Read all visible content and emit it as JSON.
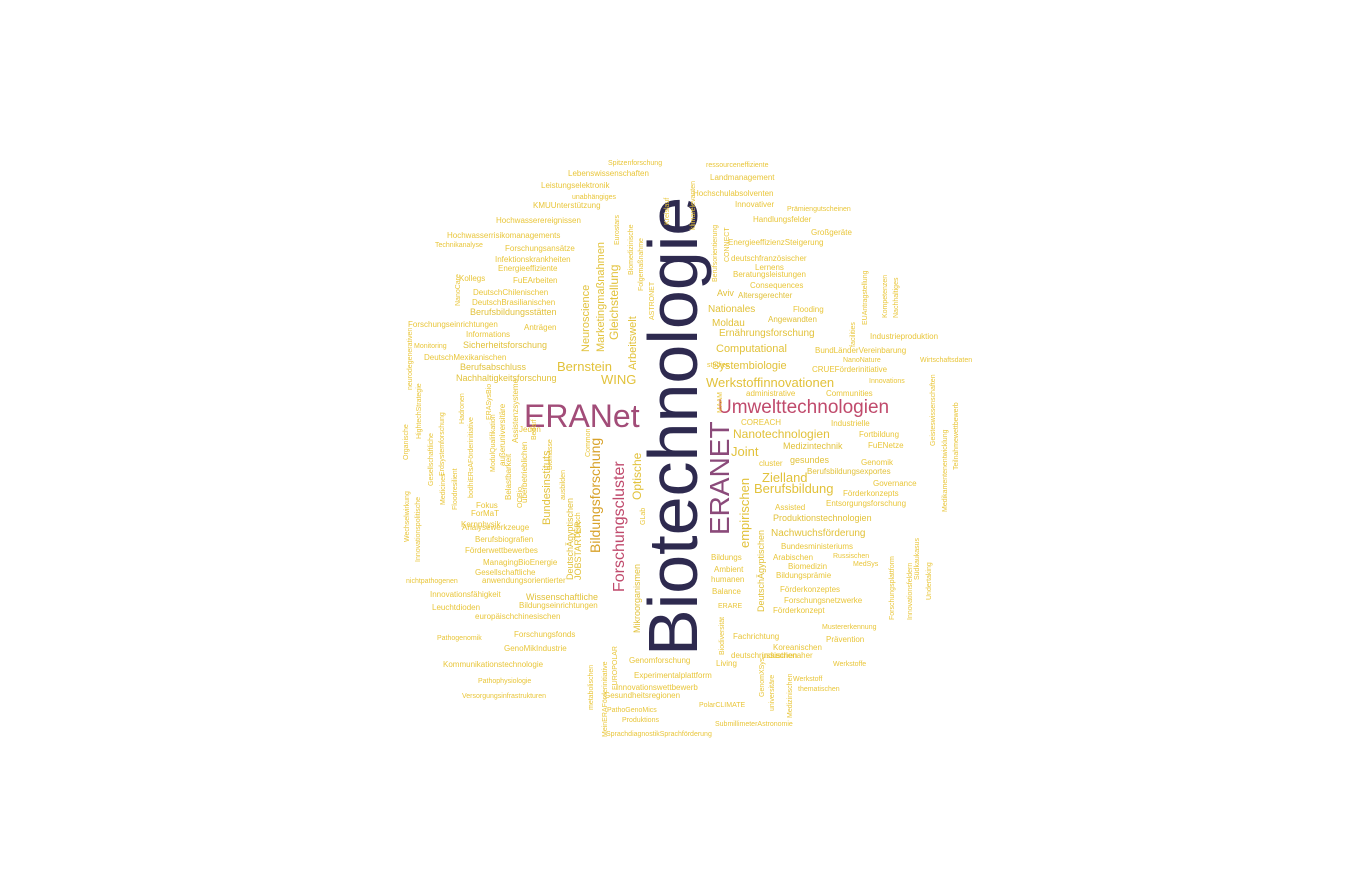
{
  "wordcloud": {
    "palette": {
      "c1": "#2E2A4F",
      "c2": "#8B4A7A",
      "c3": "#A24C78",
      "c4": "#C04A6C",
      "c5": "#D8A22A",
      "c6": "#E2C23B",
      "c7": "#E9C63A"
    },
    "words": [
      {
        "text": "Biotechnologie",
        "weight": 100
      },
      {
        "text": "ERANet",
        "weight": 42
      },
      {
        "text": "ERANET",
        "weight": 40
      },
      {
        "text": "Umwelttechnologien",
        "weight": 30
      },
      {
        "text": "Forschungscluster",
        "weight": 26
      },
      {
        "text": "Bildungsforschung",
        "weight": 24
      },
      {
        "text": "Werkstoffinnovationen",
        "weight": 22
      },
      {
        "text": "Bernstein",
        "weight": 18
      },
      {
        "text": "WING",
        "weight": 18
      },
      {
        "text": "Nanotechnologien",
        "weight": 17
      },
      {
        "text": "Berufsbildung",
        "weight": 17
      },
      {
        "text": "Zielland",
        "weight": 16
      },
      {
        "text": "Joint",
        "weight": 16
      },
      {
        "text": "empirischen",
        "weight": 16
      },
      {
        "text": "Bundesinstituts",
        "weight": 14
      },
      {
        "text": "Optische",
        "weight": 14
      },
      {
        "text": "Neuroscience",
        "weight": 14
      },
      {
        "text": "Gleichstellung",
        "weight": 14
      },
      {
        "text": "Marketingmaßnahmen",
        "weight": 13
      },
      {
        "text": "Arbeitswelt",
        "weight": 13
      },
      {
        "text": "Systembiologie",
        "weight": 13
      },
      {
        "text": "Computational",
        "weight": 12
      },
      {
        "text": "Ernährungsforschung",
        "weight": 12
      },
      {
        "text": "Nationales",
        "weight": 12
      },
      {
        "text": "Moldau",
        "weight": 12
      },
      {
        "text": "Nachwuchsförderung",
        "weight": 12
      },
      {
        "text": "Produktionstechnologien",
        "weight": 11
      },
      {
        "text": "Medizintechnik",
        "weight": 11
      },
      {
        "text": "gesundes",
        "weight": 11
      },
      {
        "text": "Sicherheitsforschung",
        "weight": 11
      },
      {
        "text": "Nachhaltigkeitsforschung",
        "weight": 11
      },
      {
        "text": "Wissenschaftliche",
        "weight": 11
      },
      {
        "text": "DeutschÄgyptischen",
        "weight": 11
      },
      {
        "text": "JOBSTARTER",
        "weight": 10
      },
      {
        "text": "DeutschÄgyptischen",
        "weight": 10
      },
      {
        "text": "Mikroorganismen",
        "weight": 10
      },
      {
        "text": "Berufsabschluss",
        "weight": 10
      },
      {
        "text": "Aviv",
        "weight": 10
      },
      {
        "text": "Berufsbildungsexportes",
        "weight": 9
      },
      {
        "text": "Angewandten",
        "weight": 9
      },
      {
        "text": "Altersgerechter",
        "weight": 9
      },
      {
        "text": "Berufsbildungsstätten",
        "weight": 9
      },
      {
        "text": "Spitzenforschung",
        "weight": 8
      },
      {
        "text": "ressourceneffiziente",
        "weight": 8
      },
      {
        "text": "Lebenswissenschaften",
        "weight": 8
      },
      {
        "text": "Landmanagement",
        "weight": 8
      },
      {
        "text": "Leistungselektronik",
        "weight": 8
      },
      {
        "text": "Hochschulabsolventen",
        "weight": 8
      },
      {
        "text": "unabhängiges",
        "weight": 7
      },
      {
        "text": "KMUUnterstützung",
        "weight": 8
      },
      {
        "text": "Innovativer",
        "weight": 8
      },
      {
        "text": "Prämiengutscheinen",
        "weight": 7
      },
      {
        "text": "Hochwasserereignissen",
        "weight": 8
      },
      {
        "text": "Handlungsfelder",
        "weight": 8
      },
      {
        "text": "Großgeräte",
        "weight": 8
      },
      {
        "text": "Hochwasserrisikomanagements",
        "weight": 8
      },
      {
        "text": "EnergieeffizienzSteigerung",
        "weight": 8
      },
      {
        "text": "Technikanalyse",
        "weight": 7
      },
      {
        "text": "Forschungsansätze",
        "weight": 8
      },
      {
        "text": "Infektionskrankheiten",
        "weight": 8
      },
      {
        "text": "deutschfranzösischer",
        "weight": 8
      },
      {
        "text": "Energieeffiziente",
        "weight": 8
      },
      {
        "text": "Lernens",
        "weight": 8
      },
      {
        "text": "Kollegs",
        "weight": 8
      },
      {
        "text": "FuEArbeiten",
        "weight": 8
      },
      {
        "text": "Beratungsleistungen",
        "weight": 8
      },
      {
        "text": "Consequences",
        "weight": 8
      },
      {
        "text": "DeutschChilenischen",
        "weight": 8
      },
      {
        "text": "DeutschBrasilianischen",
        "weight": 8
      },
      {
        "text": "Flooding",
        "weight": 8
      },
      {
        "text": "Forschungseinrichtungen",
        "weight": 8
      },
      {
        "text": "Anträgen",
        "weight": 8
      },
      {
        "text": "Informations",
        "weight": 8
      },
      {
        "text": "Monitoring",
        "weight": 7
      },
      {
        "text": "Industrieproduktion",
        "weight": 8
      },
      {
        "text": "BundLänderVereinbarung",
        "weight": 8
      },
      {
        "text": "DeutschMexikanischen",
        "weight": 8
      },
      {
        "text": "NanoNature",
        "weight": 7
      },
      {
        "text": "Wirtschaftsdaten",
        "weight": 7
      },
      {
        "text": "studies",
        "weight": 7
      },
      {
        "text": "CRUEFörderinitiative",
        "weight": 8
      },
      {
        "text": "Innovations",
        "weight": 7
      },
      {
        "text": "administrative",
        "weight": 8
      },
      {
        "text": "Communities",
        "weight": 8
      },
      {
        "text": "COREACH",
        "weight": 8
      },
      {
        "text": "Industrielle",
        "weight": 8
      },
      {
        "text": "Fortbildung",
        "weight": 8
      },
      {
        "text": "FuENetze",
        "weight": 8
      },
      {
        "text": "Genomik",
        "weight": 8
      },
      {
        "text": "cluster",
        "weight": 8
      },
      {
        "text": "Governance",
        "weight": 8
      },
      {
        "text": "Förderkonzepts",
        "weight": 8
      },
      {
        "text": "Assisted",
        "weight": 8
      },
      {
        "text": "Entsorgungsforschung",
        "weight": 8
      },
      {
        "text": "Analysewerkzeuge",
        "weight": 8
      },
      {
        "text": "Berufsbiografien",
        "weight": 8
      },
      {
        "text": "Förderwettbewerbes",
        "weight": 8
      },
      {
        "text": "ManagingBioEnergie",
        "weight": 8
      },
      {
        "text": "Gesellschaftliche",
        "weight": 8
      },
      {
        "text": "nichtpathogenen",
        "weight": 7
      },
      {
        "text": "anwendungsorientierter",
        "weight": 8
      },
      {
        "text": "Innovationsfähigkeit",
        "weight": 8
      },
      {
        "text": "Leuchtdioden",
        "weight": 8
      },
      {
        "text": "Bildungseinrichtungen",
        "weight": 8
      },
      {
        "text": "europäischchinesischen",
        "weight": 8
      },
      {
        "text": "Bundesministeriums",
        "weight": 8
      },
      {
        "text": "Arabischen",
        "weight": 8
      },
      {
        "text": "Russischen",
        "weight": 7
      },
      {
        "text": "Biomedizin",
        "weight": 8
      },
      {
        "text": "MedSys",
        "weight": 7
      },
      {
        "text": "Bildungsprämie",
        "weight": 8
      },
      {
        "text": "Förderkonzeptes",
        "weight": 8
      },
      {
        "text": "Forschungsnetzwerke",
        "weight": 8
      },
      {
        "text": "Förderkonzept",
        "weight": 8
      },
      {
        "text": "Mustererkennung",
        "weight": 7
      },
      {
        "text": "Pathogenomik",
        "weight": 7
      },
      {
        "text": "Forschungsfonds",
        "weight": 8
      },
      {
        "text": "Fachrichtung",
        "weight": 8
      },
      {
        "text": "Prävention",
        "weight": 8
      },
      {
        "text": "GenoMikIndustrie",
        "weight": 8
      },
      {
        "text": "deutschrussischen",
        "weight": 8
      },
      {
        "text": "Koreanischen",
        "weight": 8
      },
      {
        "text": "Kommunikationstechnologie",
        "weight": 8
      },
      {
        "text": "Genomforschung",
        "weight": 8
      },
      {
        "text": "Living",
        "weight": 8
      },
      {
        "text": "industrienaher",
        "weight": 8
      },
      {
        "text": "Werkstoffe",
        "weight": 7
      },
      {
        "text": "Experimentalplattform",
        "weight": 8
      },
      {
        "text": "Pathophysiologie",
        "weight": 7
      },
      {
        "text": "Innovationswettbewerb",
        "weight": 8
      },
      {
        "text": "Werkstoff",
        "weight": 7
      },
      {
        "text": "thematischen",
        "weight": 7
      },
      {
        "text": "Gesundheitsregionen",
        "weight": 8
      },
      {
        "text": "Versorgungsinfrastrukturen",
        "weight": 7
      },
      {
        "text": "PathoGenoMics",
        "weight": 7
      },
      {
        "text": "PolarCLIMATE",
        "weight": 7
      },
      {
        "text": "Produktions",
        "weight": 7
      },
      {
        "text": "SubmillimeterAstronomie",
        "weight": 7
      },
      {
        "text": "SprachdiagnostikSprachförderung",
        "weight": 7
      },
      {
        "text": "Bildungs",
        "weight": 8
      },
      {
        "text": "Ambient",
        "weight": 8
      },
      {
        "text": "humanen",
        "weight": 8
      },
      {
        "text": "Balance",
        "weight": 8
      },
      {
        "text": "ERARE",
        "weight": 7
      },
      {
        "text": "Belastbarkeit",
        "weight": 8
      },
      {
        "text": "Fokus",
        "weight": 8
      },
      {
        "text": "ForMaT",
        "weight": 8
      },
      {
        "text": "Kernphysik",
        "weight": 8
      },
      {
        "text": "Jeden",
        "weight": 8
      },
      {
        "text": "Bedarf",
        "weight": 7
      },
      {
        "text": "Medicines",
        "weight": 7
      },
      {
        "text": "Floodresilient",
        "weight": 7
      },
      {
        "text": "Hadronen",
        "weight": 7
      },
      {
        "text": "Erdsystemforschung",
        "weight": 7
      },
      {
        "text": "Gesellschaftliche",
        "weight": 7
      },
      {
        "text": "HightechStrategie",
        "weight": 7
      },
      {
        "text": "Innovationspolitische",
        "weight": 7
      },
      {
        "text": "Wechselwirkung",
        "weight": 7
      },
      {
        "text": "Organische",
        "weight": 7
      },
      {
        "text": "neurodegenerativen",
        "weight": 7
      },
      {
        "text": "NanoCare",
        "weight": 7
      },
      {
        "text": "bodhiERsAFörderinitiative",
        "weight": 7
      },
      {
        "text": "ModulQualifikation",
        "weight": 7
      },
      {
        "text": "ERASysBio",
        "weight": 7
      },
      {
        "text": "außeruniversitäre",
        "weight": 8
      },
      {
        "text": "Assistenzsysteme",
        "weight": 8
      },
      {
        "text": "Biomasse",
        "weight": 7
      },
      {
        "text": "ausbilden",
        "weight": 7
      },
      {
        "text": "Common",
        "weight": 7
      },
      {
        "text": "überbetrieblichen",
        "weight": 8
      },
      {
        "text": "Deutsch",
        "weight": 7
      },
      {
        "text": "GLab",
        "weight": 7
      },
      {
        "text": "OOBio",
        "weight": 7
      },
      {
        "text": "Eurostars",
        "weight": 7
      },
      {
        "text": "Biomedizinische",
        "weight": 7
      },
      {
        "text": "Folgemaßnahme",
        "weight": 7
      },
      {
        "text": "ASTRONET",
        "weight": 7
      },
      {
        "text": "Kreislauf",
        "weight": 7
      },
      {
        "text": "klimarelevanten",
        "weight": 7
      },
      {
        "text": "Berufsorientierung",
        "weight": 7
      },
      {
        "text": "CONNECT",
        "weight": 7
      },
      {
        "text": "Kompetenzen",
        "weight": 7
      },
      {
        "text": "EUAntragstellung",
        "weight": 7
      },
      {
        "text": "Nachhaltiges",
        "weight": 7
      },
      {
        "text": "facilities",
        "weight": 7
      },
      {
        "text": "MAAM",
        "weight": 7
      },
      {
        "text": "Geisteswissenschaften",
        "weight": 7
      },
      {
        "text": "Medikamentenentwicklung",
        "weight": 7
      },
      {
        "text": "Teilnahmewettbewerb",
        "weight": 7
      },
      {
        "text": "Forschungsplattform",
        "weight": 7
      },
      {
        "text": "Innovationsfeldern",
        "weight": 7
      },
      {
        "text": "Südkaukasus",
        "weight": 7
      },
      {
        "text": "Undertaking",
        "weight": 7
      },
      {
        "text": "Biodiversität",
        "weight": 7
      },
      {
        "text": "GenomXSys",
        "weight": 7
      },
      {
        "text": "universitäre",
        "weight": 7
      },
      {
        "text": "Medizinischen",
        "weight": 7
      },
      {
        "text": "MeinERAFörderinitiative",
        "weight": 7
      },
      {
        "text": "EUROPOLAR",
        "weight": 7
      },
      {
        "text": "metabolischen",
        "weight": 7
      }
    ]
  }
}
